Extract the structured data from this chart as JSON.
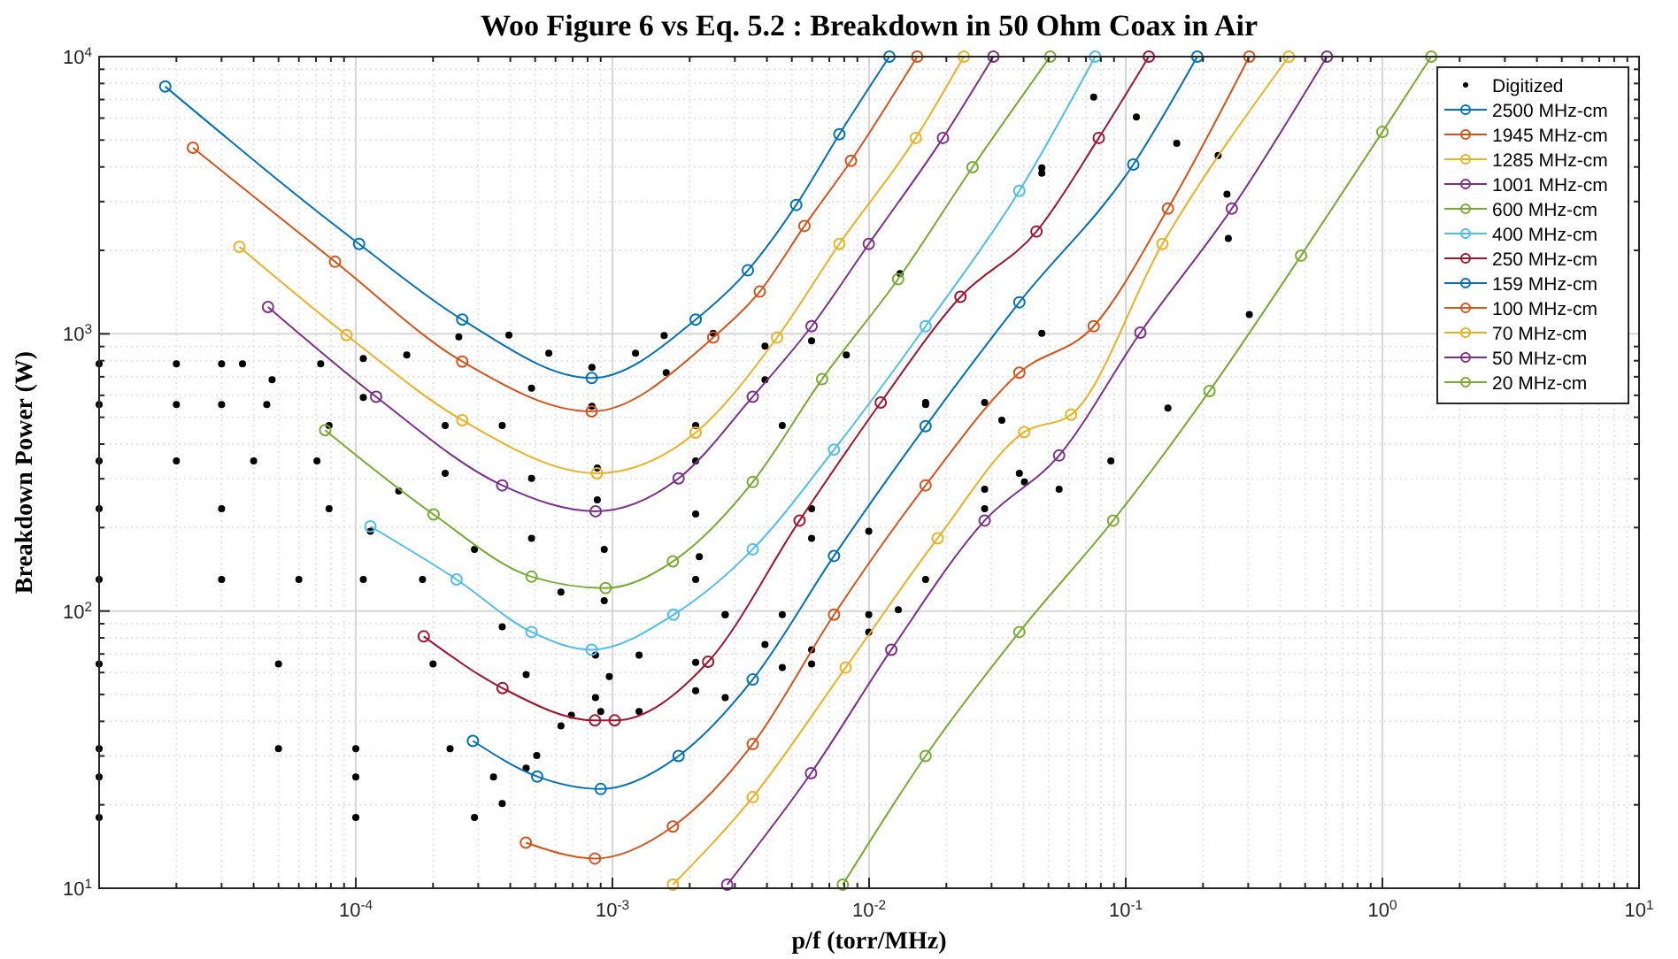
{
  "chart_data": {
    "type": "line",
    "title": "Woo Figure 6  vs  Eq. 5.2 : Breakdown in 50 Ohm Coax in Air",
    "xlabel": "p/f (torr/MHz)",
    "ylabel": "Breakdown Power (W)",
    "log": "xy",
    "grid": true,
    "legend": "top right",
    "marker": "circle",
    "xlim": [
      1e-05,
      10
    ],
    "ylim": [
      10,
      10000
    ],
    "xticks": [
      {
        "value": 1e-05,
        "label": null
      },
      {
        "value": 0.0001,
        "label": "10$^{-4}$"
      },
      {
        "value": 0.001,
        "label": "10$^{-3}$"
      },
      {
        "value": 0.01,
        "label": "10$^{-2}$"
      },
      {
        "value": 0.1,
        "label": "10$^{-1}$"
      },
      {
        "value": 1,
        "label": "10$^{0}$"
      },
      {
        "value": 10,
        "label": "10$^{1}$"
      }
    ],
    "yticks": [
      {
        "value": 10,
        "label": "10$^{1}$"
      },
      {
        "value": 100,
        "label": "10$^{2}$"
      },
      {
        "value": 1000,
        "label": "10$^{3}$"
      },
      {
        "value": 10000,
        "label": "10$^{4}$"
      }
    ],
    "series": [
      {
        "name": "Digitized",
        "type": "scatter",
        "color": "#000000",
        "x": [
          0.000395,
          0.000565,
          0.000832,
          0.00123,
          0.00159,
          0.000252,
          0.000484,
          0.000832,
          0.00162,
          0.00247,
          0.000158,
          0.000372,
          0.000873,
          0.00211,
          0.00393,
          0.000107,
          0.000223,
          0.000484,
          0.000873,
          0.00211,
          0.00393,
          0.00597,
          7.3e-05,
          0.000107,
          0.000223,
          0.000484,
          0.000929,
          0.00211,
          0.00459,
          0.00815,
          0.0132,
          1e-05,
          2e-05,
          3e-05,
          3.62e-05,
          4.72e-05,
          7.87e-05,
          0.000147,
          0.00029,
          0.00063,
          0.000929,
          0.00211,
          0.00597,
          0.0166,
          0.0471,
          0.075,
          1e-05,
          2e-05,
          3e-05,
          4.5e-05,
          1e-05,
          2e-05,
          4e-05,
          7.06e-05,
          1e-05,
          3e-05,
          7.87e-05,
          0.000114,
          0.000182,
          0.000372,
          0.000859,
          0.00127,
          0.00275,
          0.00597,
          0.0166,
          0.0471,
          0.11,
          1e-05,
          3e-05,
          6e-05,
          0.000107,
          1e-05,
          5e-05,
          0.0002,
          0.000461,
          0.000972,
          0.00211,
          0.00459,
          0.00997,
          0.0282,
          0.0471,
          0.158,
          1e-05,
          5e-05,
          0.0001,
          0.000233,
          1e-05,
          0.0001,
          0.000344,
          0.000461,
          0.00063,
          0.000859,
          0.00211,
          0.00459,
          0.00997,
          0.0282,
          0.229,
          1e-05,
          0.0001,
          0.00029,
          0.000372,
          0.000507,
          0.000692,
          0.0009,
          0.00127,
          0.00275,
          0.00597,
          0.013,
          0.0282,
          0.248,
          0.00218,
          0.00275,
          0.00393,
          0.00597,
          0.00997,
          0.0166,
          0.251,
          0.0329,
          0.0385,
          0.0403,
          0.055,
          0.0875,
          0.146,
          0.303
        ],
        "values": [
          990,
          851,
          757,
          851,
          986,
          975,
          637,
          548,
          724,
          1005,
          839,
          467,
          328,
          467,
          902,
          815,
          467,
          301,
          252,
          348,
          683,
          944,
          780,
          590,
          314,
          183,
          167,
          224,
          467,
          839,
          1650,
          780,
          780,
          780,
          780,
          683,
          467,
          271,
          167,
          117,
          109,
          130,
          234,
          565,
          3800,
          7140,
          556,
          556,
          556,
          556,
          348,
          348,
          348,
          348,
          234,
          234,
          234,
          194,
          130,
          87.7,
          69.3,
          69.3,
          97,
          183,
          556,
          3970,
          6060,
          130,
          130,
          130,
          130,
          64.4,
          64.4,
          64.4,
          59,
          58,
          65.3,
          97,
          194,
          565,
          1005,
          4870,
          31.9,
          31.9,
          31.9,
          31.9,
          25.2,
          25.2,
          25.2,
          27.1,
          38.5,
          48.7,
          51.6,
          62.5,
          97,
          275,
          4400,
          18,
          18,
          18,
          20.2,
          30.1,
          42.1,
          43.4,
          43.4,
          48.7,
          64.4,
          101,
          234,
          3190,
          157,
          97,
          75.7,
          72.4,
          84,
          130,
          2210,
          488,
          314,
          292,
          275,
          348,
          540,
          1175
        ]
      },
      {
        "name": "2500 MHz-cm",
        "color": "#0072bd",
        "x": [
          1.81e-05,
          0.000103,
          0.00026,
          0.00083,
          0.00211,
          0.00337,
          0.0052,
          0.00766,
          0.012
        ],
        "values": [
          7800,
          2110,
          1125,
          693,
          1125,
          1694,
          2917,
          5250,
          10000
        ]
      },
      {
        "name": "1945 MHz-cm",
        "color": "#d95319",
        "x": [
          2.32e-05,
          8.3e-05,
          0.00026,
          0.00083,
          0.00247,
          0.00375,
          0.0056,
          0.0085,
          0.0154
        ],
        "values": [
          4690,
          1820,
          794,
          525,
          970,
          1420,
          2450,
          4210,
          10000
        ]
      },
      {
        "name": "1285 MHz-cm",
        "color": "#edb120",
        "x": [
          3.52e-05,
          9.2e-05,
          0.00026,
          0.00087,
          0.00211,
          0.00438,
          0.00766,
          0.0152,
          0.0234
        ],
        "values": [
          2060,
          990,
          488,
          314,
          440,
          970,
          2110,
          5090,
          10000
        ]
      },
      {
        "name": "1001 MHz-cm",
        "color": "#7e2f8e",
        "x": [
          4.55e-05,
          0.00012,
          0.000372,
          0.00086,
          0.00181,
          0.00352,
          0.00597,
          0.00997,
          0.0194,
          0.0305
        ],
        "values": [
          1250,
          593,
          284,
          229,
          301,
          593,
          1065,
          2110,
          5090,
          10000
        ]
      },
      {
        "name": "600 MHz-cm",
        "color": "#77ac30",
        "x": [
          7.6e-05,
          0.000201,
          0.000484,
          0.00094,
          0.00172,
          0.00352,
          0.00656,
          0.01297,
          0.0253,
          0.0508
        ],
        "values": [
          449,
          223,
          133,
          121,
          151,
          292,
          686,
          1575,
          3990,
          10000
        ]
      },
      {
        "name": "400 MHz-cm",
        "color": "#4dbeee",
        "x": [
          0.000114,
          0.000247,
          0.000484,
          0.00083,
          0.00173,
          0.00352,
          0.0073,
          0.0166,
          0.0385,
          0.076
        ],
        "values": [
          202,
          130,
          84,
          72.5,
          97,
          167,
          382,
          1065,
          3280,
          10000
        ]
      },
      {
        "name": "250 MHz-cm",
        "color": "#a2142f",
        "x": [
          0.000184,
          0.000373,
          0.000855,
          0.00102,
          0.00236,
          0.00536,
          0.0111,
          0.0227,
          0.0449,
          0.0785,
          0.123
        ],
        "values": [
          81,
          52.7,
          40.3,
          40.3,
          65.6,
          212,
          565,
          1360,
          2340,
          5090,
          10000
        ]
      },
      {
        "name": "159 MHz-cm",
        "color": "#0072bd",
        "x": [
          0.000286,
          0.000509,
          0.0009,
          0.00181,
          0.00352,
          0.0073,
          0.0166,
          0.0385,
          0.107,
          0.19
        ],
        "values": [
          34,
          25.3,
          22.8,
          30,
          56.6,
          158,
          464,
          1300,
          4080,
          10000
        ]
      },
      {
        "name": "100 MHz-cm",
        "color": "#d95319",
        "x": [
          0.00046,
          0.000855,
          0.00172,
          0.00352,
          0.0073,
          0.0166,
          0.0385,
          0.075,
          0.146,
          0.303
        ],
        "values": [
          14.6,
          12.8,
          16.7,
          33.1,
          97,
          284,
          724,
          1065,
          2830,
          10000
        ]
      },
      {
        "name": "70 MHz-cm",
        "color": "#edb120",
        "x": [
          0.00172,
          0.00352,
          0.0081,
          0.0185,
          0.0402,
          0.0612,
          0.139,
          0.432
        ],
        "values": [
          10.3,
          21.3,
          62.5,
          183,
          442,
          511,
          2110,
          10000
        ]
      },
      {
        "name": "50 MHz-cm",
        "color": "#7e2f8e",
        "x": [
          0.0028,
          0.00594,
          0.0122,
          0.0282,
          0.055,
          0.114,
          0.259,
          0.608
        ],
        "values": [
          10.3,
          26,
          72.5,
          212,
          364,
          1010,
          2830,
          10000
        ]
      },
      {
        "name": "20 MHz-cm",
        "color": "#77ac30",
        "x": [
          0.0079,
          0.0166,
          0.0385,
          0.0893,
          0.212,
          0.482,
          1,
          1.55
        ],
        "values": [
          10.3,
          30,
          84,
          212,
          622,
          1915,
          5350,
          10000
        ]
      }
    ]
  }
}
